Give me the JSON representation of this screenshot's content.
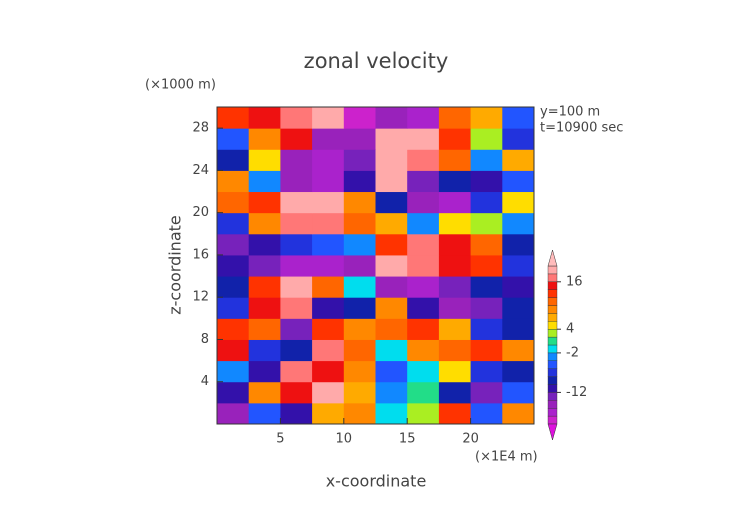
{
  "chart_data": {
    "type": "heatmap",
    "title": "zonal velocity",
    "x_label": "x-coordinate",
    "y_label": "z-coordinate",
    "x_unit": "(×1E4 m)",
    "y_unit": "(×1000 m)",
    "annotations": [
      "y=100 m",
      "t=10900 sec"
    ],
    "xlim": [
      0,
      25
    ],
    "ylim": [
      0,
      30
    ],
    "xticks": [
      5,
      10,
      15,
      20
    ],
    "yticks": [
      4,
      8,
      12,
      16,
      20,
      24,
      28
    ],
    "x": [
      1.25,
      3.75,
      6.25,
      8.75,
      11.25,
      13.75,
      16.25,
      18.75,
      21.25,
      23.75
    ],
    "y": [
      1,
      3,
      5,
      7,
      9,
      11,
      13,
      15,
      17,
      19,
      21,
      23,
      25,
      27,
      29
    ],
    "values": [
      [
        -16,
        -6,
        -12,
        6,
        8,
        -2,
        2,
        12,
        -6,
        8
      ],
      [
        -12,
        8,
        14,
        18,
        6,
        -4,
        0,
        -10,
        -14,
        -6
      ],
      [
        -4,
        -12,
        16,
        14,
        8,
        -6,
        -2,
        4,
        -8,
        -10
      ],
      [
        14,
        -8,
        -10,
        16,
        10,
        -2,
        8,
        10,
        12,
        8
      ],
      [
        12,
        10,
        -14,
        12,
        8,
        10,
        12,
        6,
        -8,
        -10
      ],
      [
        -8,
        14,
        16,
        -12,
        -10,
        8,
        -12,
        -16,
        -14,
        -10
      ],
      [
        -10,
        12,
        18,
        10,
        -2,
        -16,
        -18,
        -14,
        -10,
        -12
      ],
      [
        -12,
        -14,
        -18,
        -18,
        -16,
        18,
        16,
        14,
        12,
        -8
      ],
      [
        -14,
        -12,
        -8,
        -6,
        -4,
        12,
        16,
        14,
        10,
        -10
      ],
      [
        -8,
        8,
        17,
        16,
        10,
        6,
        -4,
        4,
        2,
        -4
      ],
      [
        10,
        12,
        18,
        18,
        8,
        -10,
        -16,
        -18,
        -8,
        4
      ],
      [
        8,
        -4,
        -16,
        -18,
        -12,
        18,
        -14,
        -10,
        -12,
        -6
      ],
      [
        -10,
        4,
        -16,
        -18,
        -14,
        19,
        16,
        10,
        -4,
        6
      ],
      [
        -6,
        8,
        14,
        -16,
        -16,
        18,
        18,
        12,
        2,
        -8
      ],
      [
        12,
        14,
        16,
        19,
        -19,
        -16,
        -18,
        10,
        6,
        -6
      ]
    ],
    "levels": [
      -20,
      -18,
      -16,
      -14,
      -12,
      -10,
      -8,
      -6,
      -4,
      -2,
      0,
      2,
      4,
      6,
      8,
      10,
      12,
      14,
      16,
      18,
      20
    ],
    "colors": [
      "#cc22cc",
      "#aa22cc",
      "#9922bb",
      "#7722bb",
      "#3311aa",
      "#1122aa",
      "#2233dd",
      "#2255ff",
      "#1188ff",
      "#00ddee",
      "#22dd88",
      "#aaee22",
      "#ffdd00",
      "#ffaa00",
      "#ff8800",
      "#ff6600",
      "#ff3300",
      "#ee1111",
      "#ff7777",
      "#ffaaaa"
    ],
    "extend_colors": [
      "#dd11dd",
      "#ffbbbb"
    ],
    "cbar_ticks": [
      16,
      4,
      -2,
      -12
    ]
  }
}
